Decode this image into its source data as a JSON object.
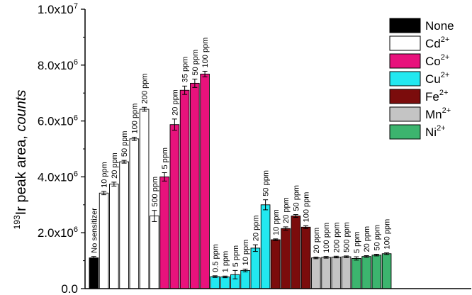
{
  "chart_data": {
    "type": "bar",
    "title": "",
    "xlabel": "",
    "ylabel": {
      "superscript": "193",
      "main": "Ir peak area, ",
      "italic": "counts"
    },
    "ylim": [
      0,
      10000000
    ],
    "yticks": [
      {
        "value": 0,
        "mantissa": "0.0",
        "exp": ""
      },
      {
        "value": 2000000,
        "mantissa": "2.0x10",
        "exp": "6"
      },
      {
        "value": 4000000,
        "mantissa": "4.0x10",
        "exp": "6"
      },
      {
        "value": 6000000,
        "mantissa": "6.0x10",
        "exp": "6"
      },
      {
        "value": 8000000,
        "mantissa": "8.0x10",
        "exp": "6"
      },
      {
        "value": 10000000,
        "mantissa": "1.0x10",
        "exp": "7"
      }
    ],
    "grid": false,
    "legend_position": "top-right",
    "series": [
      {
        "name": "None",
        "sup": "",
        "color": "#000000",
        "bars": [
          {
            "label": "No sensitizer",
            "value": 1100000,
            "err": 50000
          }
        ]
      },
      {
        "name": "Cd",
        "sup": "2+",
        "color": "#ffffff",
        "bars": [
          {
            "label": "10 ppm",
            "value": 3420000,
            "err": 60000
          },
          {
            "label": "20 ppm",
            "value": 3740000,
            "err": 70000
          },
          {
            "label": "50 ppm",
            "value": 4540000,
            "err": 50000
          },
          {
            "label": "100 ppm",
            "value": 5360000,
            "err": 60000
          },
          {
            "label": "200 ppm",
            "value": 6420000,
            "err": 70000
          },
          {
            "label": "500 ppm",
            "value": 2600000,
            "err": 200000
          }
        ]
      },
      {
        "name": "Co",
        "sup": "2+",
        "color": "#e8127c",
        "bars": [
          {
            "label": "5 ppm",
            "value": 4000000,
            "err": 150000
          },
          {
            "label": "20 ppm",
            "value": 5870000,
            "err": 200000
          },
          {
            "label": "35 ppm",
            "value": 7100000,
            "err": 150000
          },
          {
            "label": "50 ppm",
            "value": 7350000,
            "err": 150000
          },
          {
            "label": "100 ppm",
            "value": 7680000,
            "err": 100000
          }
        ]
      },
      {
        "name": "Cu",
        "sup": "2+",
        "color": "#22e8f0",
        "bars": [
          {
            "label": "0.5 ppm",
            "value": 430000,
            "err": 30000
          },
          {
            "label": "1 ppm",
            "value": 420000,
            "err": 30000
          },
          {
            "label": "5 ppm",
            "value": 500000,
            "err": 150000
          },
          {
            "label": "10 ppm",
            "value": 650000,
            "err": 50000
          },
          {
            "label": "20 ppm",
            "value": 1450000,
            "err": 120000
          },
          {
            "label": "50 ppm",
            "value": 3000000,
            "err": 180000
          }
        ]
      },
      {
        "name": "Fe",
        "sup": "2+",
        "color": "#7b0c0c",
        "bars": [
          {
            "label": "10 ppm",
            "value": 1750000,
            "err": 30000
          },
          {
            "label": "20 ppm",
            "value": 2150000,
            "err": 60000
          },
          {
            "label": "50 ppm",
            "value": 2600000,
            "err": 50000
          },
          {
            "label": "100 ppm",
            "value": 2200000,
            "err": 50000
          }
        ]
      },
      {
        "name": "Mn",
        "sup": "2+",
        "color": "#c4c4c4",
        "bars": [
          {
            "label": "20 ppm",
            "value": 1100000,
            "err": 30000
          },
          {
            "label": "100 ppm",
            "value": 1120000,
            "err": 30000
          },
          {
            "label": "200 ppm",
            "value": 1130000,
            "err": 30000
          },
          {
            "label": "500 ppm",
            "value": 1140000,
            "err": 30000
          }
        ]
      },
      {
        "name": "Ni",
        "sup": "2+",
        "color": "#3cb46e",
        "bars": [
          {
            "label": "5 ppm",
            "value": 1080000,
            "err": 60000
          },
          {
            "label": "20 ppm",
            "value": 1150000,
            "err": 30000
          },
          {
            "label": "50 ppm",
            "value": 1200000,
            "err": 30000
          },
          {
            "label": "100 ppm",
            "value": 1250000,
            "err": 30000
          }
        ]
      }
    ]
  }
}
